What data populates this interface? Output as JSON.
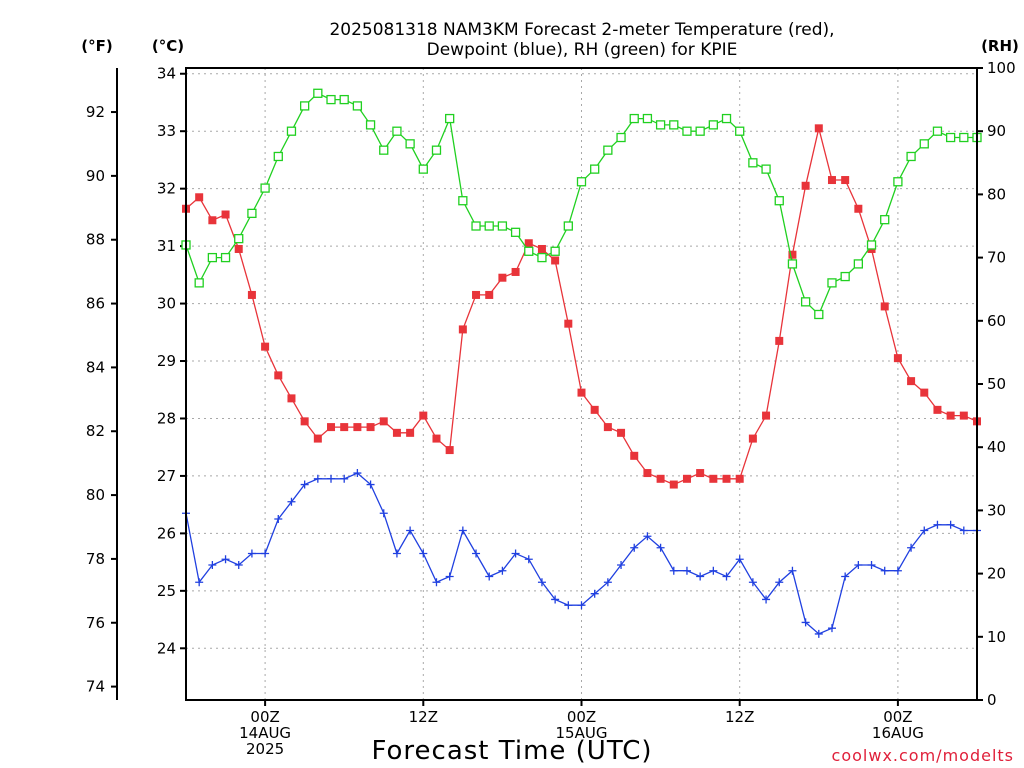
{
  "chart_data": {
    "type": "line",
    "title": [
      "2025081318 NAM3KM Forecast 2-meter Temperature (red),",
      "Dewpoint (blue), RH (green) for KPIE"
    ],
    "xlabel": "Forecast Time (UTC)",
    "credit": "coolwx.com/modelts",
    "units": {
      "left_outer": "(°F)",
      "left_inner": "(°C)",
      "right": "(RH)"
    },
    "hours": [
      0,
      1,
      2,
      3,
      4,
      5,
      6,
      7,
      8,
      9,
      10,
      11,
      12,
      13,
      14,
      15,
      16,
      17,
      18,
      19,
      20,
      21,
      22,
      23,
      24,
      25,
      26,
      27,
      28,
      29,
      30,
      31,
      32,
      33,
      34,
      35,
      36,
      37,
      38,
      39,
      40,
      41,
      42,
      43,
      44,
      45,
      46,
      47,
      48,
      49,
      50,
      51,
      52,
      53,
      54,
      55,
      56,
      57,
      58,
      59,
      60
    ],
    "x_ticks": [
      {
        "hour": 6,
        "lines": [
          "00Z",
          "14AUG",
          "2025"
        ]
      },
      {
        "hour": 18,
        "lines": [
          "12Z"
        ]
      },
      {
        "hour": 30,
        "lines": [
          "00Z",
          "15AUG"
        ]
      },
      {
        "hour": 42,
        "lines": [
          "12Z"
        ]
      },
      {
        "hour": 54,
        "lines": [
          "00Z",
          "16AUG"
        ]
      }
    ],
    "xlim": [
      0,
      60
    ],
    "celsius_range": [
      23.1,
      34.1
    ],
    "celsius_ticks": [
      24,
      25,
      26,
      27,
      28,
      29,
      30,
      31,
      32,
      33,
      34
    ],
    "fahrenheit_ticks": [
      74,
      76,
      78,
      80,
      82,
      84,
      86,
      88,
      90,
      92
    ],
    "rh_range": [
      0,
      100
    ],
    "rh_ticks": [
      0,
      10,
      20,
      30,
      40,
      50,
      60,
      70,
      80,
      90,
      100
    ],
    "series": [
      {
        "key": "temperature",
        "axis": "celsius",
        "color": "#e8343a",
        "marker": "filled-square",
        "values": [
          31.65,
          31.85,
          31.45,
          31.55,
          30.95,
          30.15,
          29.25,
          28.75,
          28.35,
          27.95,
          27.65,
          27.85,
          27.85,
          27.85,
          27.85,
          27.95,
          27.75,
          27.75,
          28.05,
          27.65,
          27.45,
          29.55,
          30.15,
          30.15,
          30.45,
          30.55,
          31.05,
          30.95,
          30.75,
          29.65,
          28.45,
          28.15,
          27.85,
          27.75,
          27.35,
          27.05,
          26.95,
          26.85,
          26.95,
          27.05,
          26.95,
          26.95,
          26.95,
          27.65,
          28.05,
          29.35,
          30.85,
          32.05,
          33.05,
          32.15,
          32.15,
          31.65,
          30.95,
          29.95,
          29.05,
          28.65,
          28.45,
          28.15,
          28.05,
          28.05,
          27.95
        ]
      },
      {
        "key": "dewpoint",
        "axis": "celsius",
        "color": "#2040e0",
        "marker": "plus",
        "values": [
          26.35,
          25.15,
          25.45,
          25.55,
          25.45,
          25.65,
          25.65,
          26.25,
          26.55,
          26.85,
          26.95,
          26.95,
          26.95,
          27.05,
          26.85,
          26.35,
          25.65,
          26.05,
          25.65,
          25.15,
          25.25,
          26.05,
          25.65,
          25.25,
          25.35,
          25.65,
          25.55,
          25.15,
          24.85,
          24.75,
          24.75,
          24.95,
          25.15,
          25.45,
          25.75,
          25.95,
          25.75,
          25.35,
          25.35,
          25.25,
          25.35,
          25.25,
          25.55,
          25.15,
          24.85,
          25.15,
          25.35,
          24.45,
          24.25,
          24.35,
          25.25,
          25.45,
          25.45,
          25.35,
          25.35,
          25.75,
          26.05,
          26.15,
          26.15,
          26.05,
          26.05
        ]
      },
      {
        "key": "rh",
        "axis": "rh",
        "color": "#20d020",
        "marker": "open-square",
        "values": [
          72,
          66,
          70,
          70,
          73,
          77,
          81,
          86,
          90,
          94,
          96,
          95,
          95,
          94,
          91,
          87,
          90,
          88,
          84,
          87,
          92,
          79,
          75,
          75,
          75,
          74,
          71,
          70,
          71,
          75,
          82,
          84,
          87,
          89,
          92,
          92,
          91,
          91,
          90,
          90,
          91,
          92,
          90,
          85,
          84,
          79,
          69,
          63,
          61,
          66,
          67,
          69,
          72,
          76,
          82,
          86,
          88,
          90,
          89,
          89,
          89
        ]
      }
    ]
  }
}
